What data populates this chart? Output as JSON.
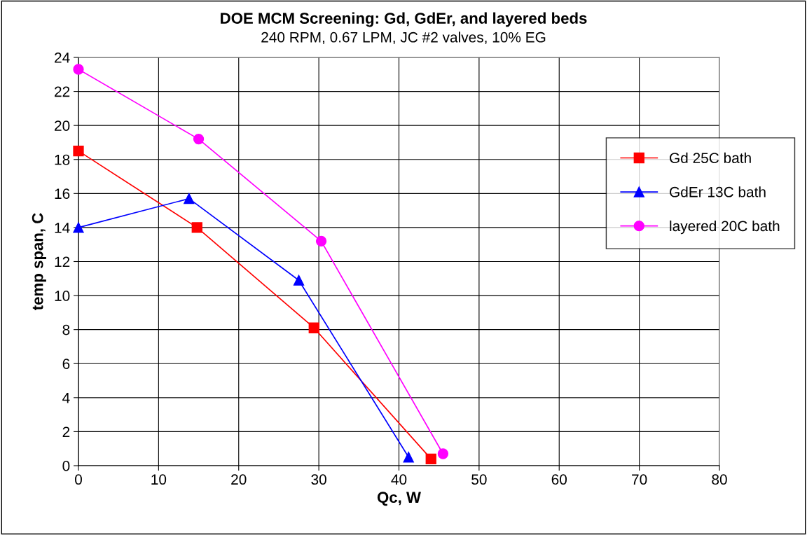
{
  "chart_data": {
    "type": "line",
    "title": "DOE MCM Screening: Gd, GdEr, and layered beds",
    "subtitle": "240 RPM, 0.67 LPM, JC #2 valves, 10% EG",
    "xlabel": "Qc, W",
    "ylabel": "temp span, C",
    "xlim": [
      0,
      80
    ],
    "xticks": [
      0,
      10,
      20,
      30,
      40,
      50,
      60,
      70,
      80
    ],
    "ylim": [
      0,
      24
    ],
    "yticks": [
      0,
      2,
      4,
      6,
      8,
      10,
      12,
      14,
      16,
      18,
      20,
      22,
      24
    ],
    "grid": true,
    "legend": "right",
    "series": [
      {
        "name": "Gd 25C bath",
        "color": "#ff0000",
        "marker": "square",
        "x": [
          0,
          14.8,
          29.4,
          44.0
        ],
        "values": [
          18.5,
          14.0,
          8.1,
          0.4
        ]
      },
      {
        "name": "GdEr 13C bath",
        "color": "#0000ff",
        "marker": "triangle",
        "x": [
          0,
          13.8,
          27.5,
          41.2
        ],
        "values": [
          14.0,
          15.7,
          10.9,
          0.5
        ]
      },
      {
        "name": "layered 20C bath",
        "color": "#ff00ff",
        "marker": "circle",
        "x": [
          0,
          15.0,
          30.3,
          45.5
        ],
        "values": [
          23.3,
          19.2,
          13.2,
          0.7
        ]
      }
    ]
  }
}
